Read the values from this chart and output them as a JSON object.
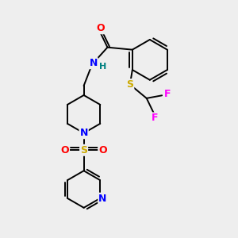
{
  "bg_color": "#eeeeee",
  "atom_colors": {
    "O": "#ff0000",
    "N": "#0000ff",
    "S": "#ccaa00",
    "F": "#ff00ff",
    "H": "#008080",
    "C": "#000000"
  },
  "bond_color": "#000000",
  "bond_width": 1.4
}
